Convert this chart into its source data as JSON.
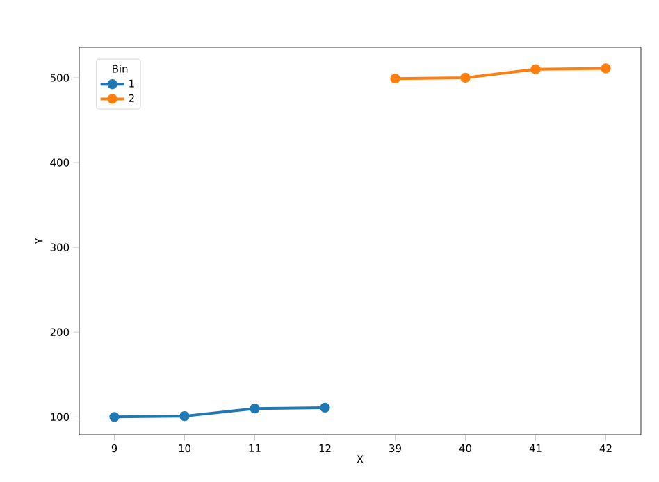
{
  "chart_data": {
    "type": "line",
    "xlabel": "X",
    "ylabel": "Y",
    "legend_title": "Bin",
    "categories": [
      "9",
      "10",
      "11",
      "12",
      "39",
      "40",
      "41",
      "42"
    ],
    "series": [
      {
        "name": "1",
        "color": "#1f77b4",
        "values": [
          100,
          101,
          110,
          111,
          null,
          null,
          null,
          null
        ]
      },
      {
        "name": "2",
        "color": "#ff7f0e",
        "values": [
          null,
          null,
          null,
          null,
          499,
          500,
          510,
          511
        ]
      }
    ],
    "ylim": [
      79,
      536
    ],
    "yticks": [
      100,
      200,
      300,
      400,
      500
    ],
    "legend": "top left",
    "marker": "circle",
    "line_style": "solid",
    "grid": false
  }
}
